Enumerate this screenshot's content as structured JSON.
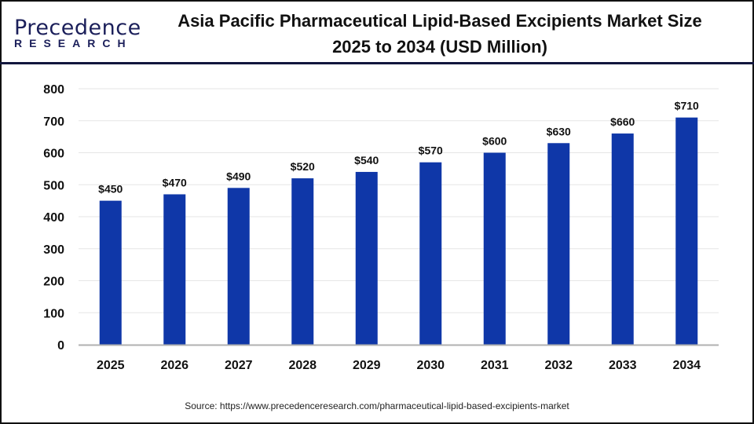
{
  "logo": {
    "text_main": "Precedence",
    "text_sub": "RESEARCH"
  },
  "title_line1": "Asia Pacific Pharmaceutical Lipid-Based Excipients Market Size",
  "title_line2": "2025 to 2034 (USD Million)",
  "source": "Source: https://www.precedenceresearch.com/pharmaceutical-lipid-based-excipients-market",
  "colors": {
    "bar": "#0f37a8",
    "header_line": "#12173d",
    "grid": "#e6e6e6",
    "axis": "#b0b0b0"
  },
  "chart_data": {
    "type": "bar",
    "title": "Asia Pacific Pharmaceutical Lipid-Based Excipients Market Size 2025 to 2034 (USD Million)",
    "categories": [
      "2025",
      "2026",
      "2027",
      "2028",
      "2029",
      "2030",
      "2031",
      "2032",
      "2033",
      "2034"
    ],
    "values": [
      450,
      470,
      490,
      520,
      540,
      570,
      600,
      630,
      660,
      710
    ],
    "data_labels": [
      "$450",
      "$470",
      "$490",
      "$520",
      "$540",
      "$570",
      "$600",
      "$630",
      "$660",
      "$710"
    ],
    "xlabel": "",
    "ylabel": "",
    "ylim": [
      0,
      800
    ],
    "yticks": [
      0,
      100,
      200,
      300,
      400,
      500,
      600,
      700,
      800
    ],
    "grid": true,
    "legend": "none"
  }
}
